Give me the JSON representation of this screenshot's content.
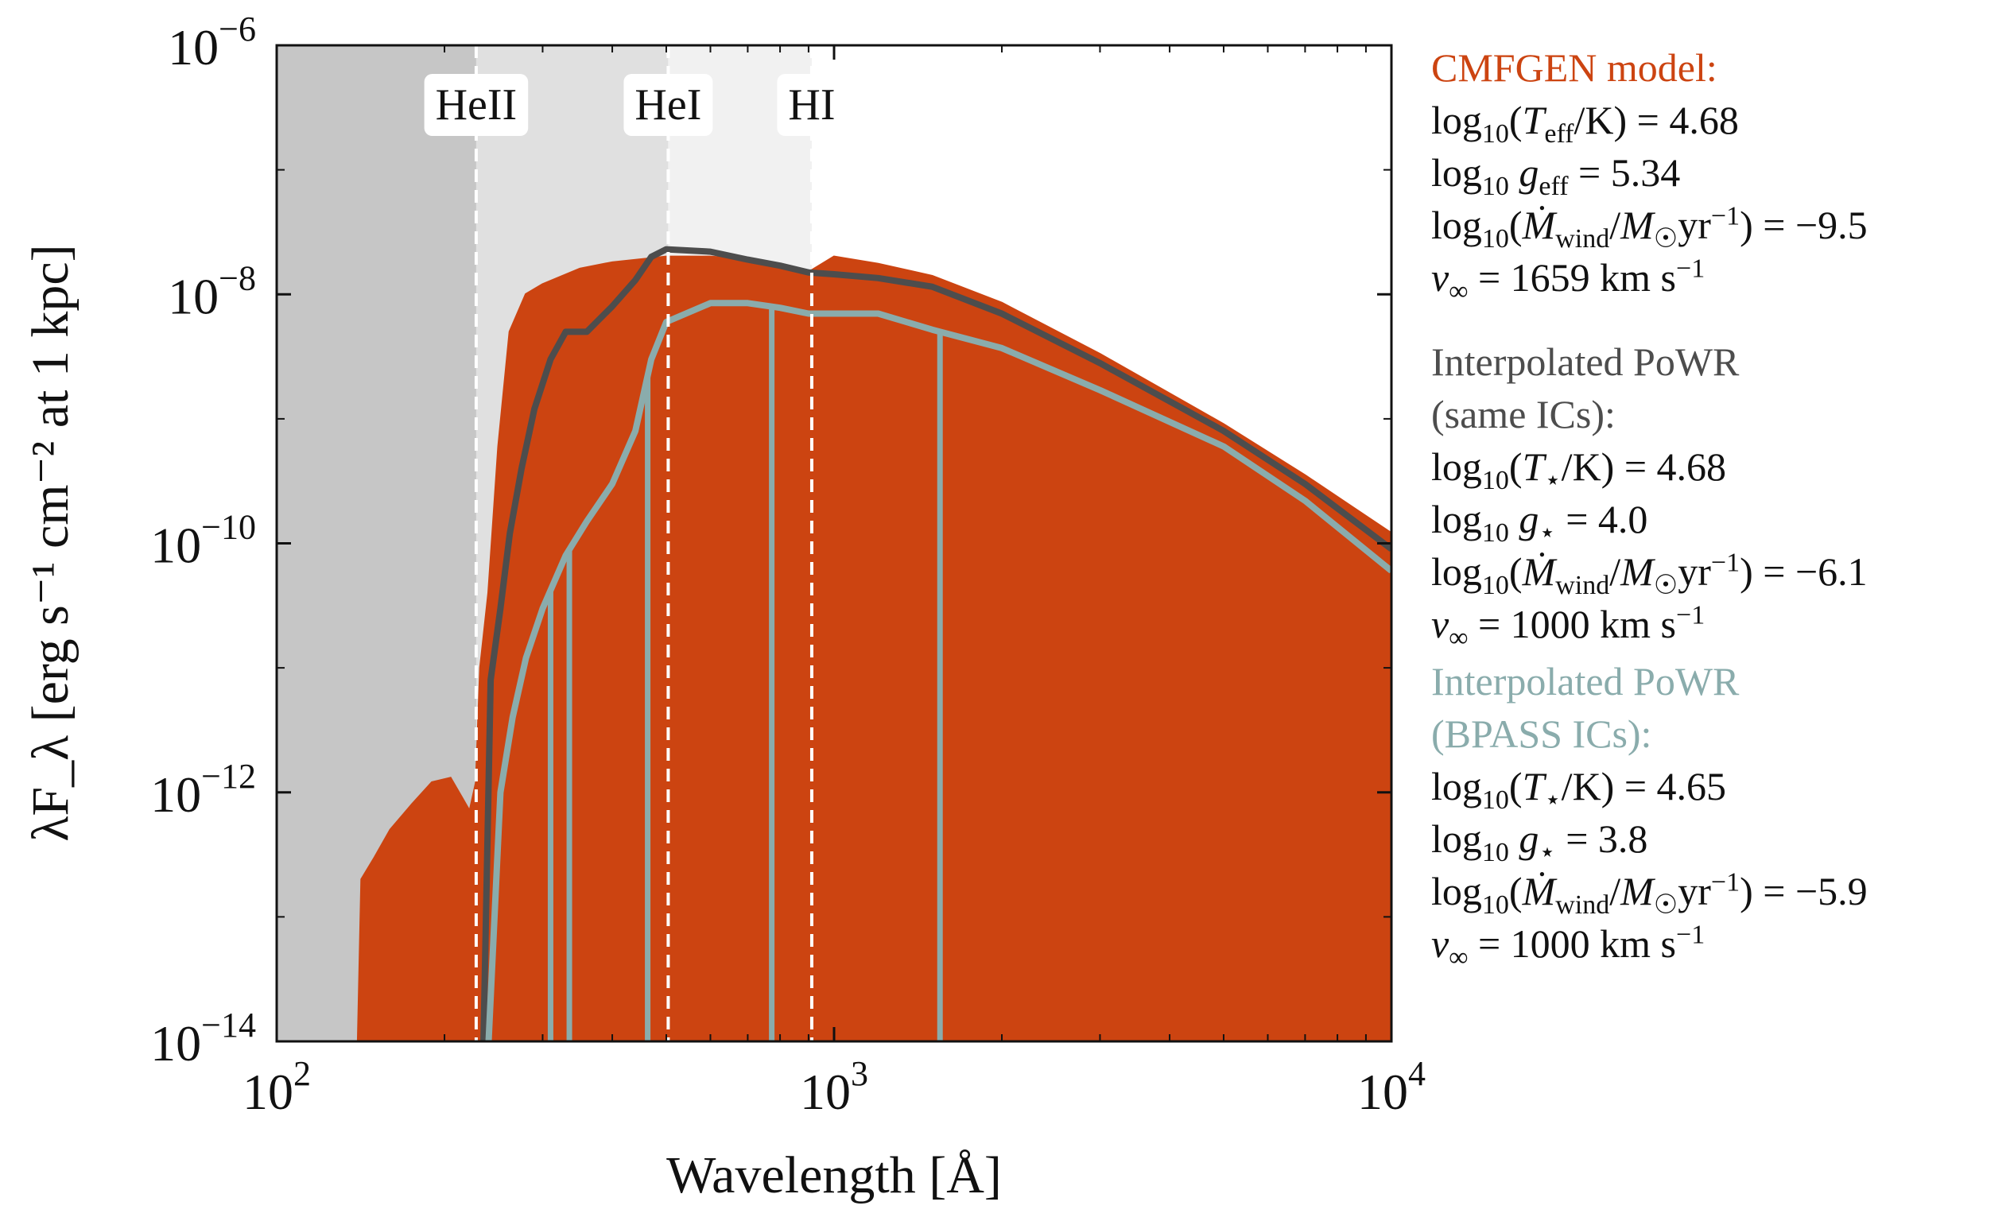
{
  "chart_data": {
    "type": "line",
    "xlabel": "Wavelength [Å]",
    "ylabel": "λF_λ [erg s⁻¹ cm⁻² at 1 kpc]",
    "xscale": "log",
    "yscale": "log",
    "xlim": [
      100,
      10000
    ],
    "ylim": [
      1e-14,
      1e-06
    ],
    "x_ticks": [
      {
        "value": 100,
        "base": "10",
        "exp": "2"
      },
      {
        "value": 1000,
        "base": "10",
        "exp": "3"
      },
      {
        "value": 10000,
        "base": "10",
        "exp": "4"
      }
    ],
    "y_ticks": [
      {
        "value": 1e-06,
        "base": "10",
        "exp": "−6"
      },
      {
        "value": 1e-08,
        "base": "10",
        "exp": "−8"
      },
      {
        "value": 1e-10,
        "base": "10",
        "exp": "−10"
      },
      {
        "value": 1e-12,
        "base": "10",
        "exp": "−12"
      },
      {
        "value": 1e-14,
        "base": "10",
        "exp": "−14"
      }
    ],
    "ionization_edges": [
      {
        "label": "HeII",
        "wavelength": 228,
        "shade_color": "#c6c6c6"
      },
      {
        "label": "HeI",
        "wavelength": 504,
        "shade_color": "#e0e0e0"
      },
      {
        "label": "HI",
        "wavelength": 912,
        "shade_color": "#f1f1f1"
      }
    ],
    "series": [
      {
        "name": "CMFGEN model",
        "color": "#cc4411",
        "style": "filled",
        "points": [
          [
            140,
            1e-14
          ],
          [
            142,
            2e-13
          ],
          [
            150,
            3e-13
          ],
          [
            160,
            5e-13
          ],
          [
            175,
            8e-13
          ],
          [
            190,
            1.2e-12
          ],
          [
            205,
            1.3e-12
          ],
          [
            215,
            9e-13
          ],
          [
            222,
            7e-13
          ],
          [
            228,
            1.2e-12
          ],
          [
            232,
            1e-11
          ],
          [
            240,
            4e-11
          ],
          [
            250,
            6e-10
          ],
          [
            262,
            5e-09
          ],
          [
            280,
            1e-08
          ],
          [
            300,
            1.2e-08
          ],
          [
            350,
            1.6e-08
          ],
          [
            400,
            1.8e-08
          ],
          [
            500,
            2e-08
          ],
          [
            600,
            2e-08
          ],
          [
            700,
            1.9e-08
          ],
          [
            800,
            1.7e-08
          ],
          [
            900,
            1.5e-08
          ],
          [
            1000,
            2e-08
          ],
          [
            1200,
            1.75e-08
          ],
          [
            1500,
            1.4e-08
          ],
          [
            2000,
            8.5e-09
          ],
          [
            3000,
            3.3e-09
          ],
          [
            5000,
            9e-10
          ],
          [
            7000,
            3.5e-10
          ],
          [
            10000,
            1.2e-10
          ]
        ]
      },
      {
        "name": "Interpolated PoWR (same ICs)",
        "color": "#4d4d4d",
        "style": "line",
        "points": [
          [
            235,
            1e-14
          ],
          [
            242,
            8e-12
          ],
          [
            252,
            3e-11
          ],
          [
            262,
            1.2e-10
          ],
          [
            275,
            4e-10
          ],
          [
            290,
            1.2e-09
          ],
          [
            310,
            3e-09
          ],
          [
            330,
            5e-09
          ],
          [
            360,
            5e-09
          ],
          [
            400,
            8e-09
          ],
          [
            440,
            1.3e-08
          ],
          [
            470,
            2e-08
          ],
          [
            500,
            2.3e-08
          ],
          [
            600,
            2.2e-08
          ],
          [
            700,
            1.9e-08
          ],
          [
            800,
            1.7e-08
          ],
          [
            900,
            1.5e-08
          ],
          [
            1000,
            1.45e-08
          ],
          [
            1200,
            1.35e-08
          ],
          [
            1500,
            1.15e-08
          ],
          [
            2000,
            7e-09
          ],
          [
            3000,
            2.8e-09
          ],
          [
            5000,
            8e-10
          ],
          [
            7000,
            3e-10
          ],
          [
            10000,
            9e-11
          ]
        ]
      },
      {
        "name": "Interpolated PoWR (BPASS ICs)",
        "color": "#8aacac",
        "style": "line",
        "points": [
          [
            240,
            1e-14
          ],
          [
            252,
            1e-12
          ],
          [
            265,
            4e-12
          ],
          [
            280,
            1.2e-11
          ],
          [
            300,
            3e-11
          ],
          [
            330,
            8e-11
          ],
          [
            360,
            1.5e-10
          ],
          [
            400,
            3e-10
          ],
          [
            440,
            8e-10
          ],
          [
            470,
            3e-09
          ],
          [
            500,
            6e-09
          ],
          [
            600,
            8.5e-09
          ],
          [
            700,
            8.5e-09
          ],
          [
            800,
            7.8e-09
          ],
          [
            900,
            7e-09
          ],
          [
            1000,
            7e-09
          ],
          [
            1200,
            7e-09
          ],
          [
            1500,
            5.2e-09
          ],
          [
            2000,
            3.7e-09
          ],
          [
            3000,
            1.7e-09
          ],
          [
            5000,
            6e-10
          ],
          [
            7000,
            2.2e-10
          ],
          [
            10000,
            6e-11
          ]
        ]
      }
    ],
    "absorption_lines": [
      {
        "series": "Interpolated PoWR (BPASS ICs)",
        "wavelength": 463,
        "depth_to": 1e-14
      },
      {
        "series": "Interpolated PoWR (BPASS ICs)",
        "wavelength": 773,
        "depth_to": 1e-14
      },
      {
        "series": "Interpolated PoWR (BPASS ICs)",
        "wavelength": 1549,
        "depth_to": 1e-14
      },
      {
        "series": "Interpolated PoWR (BPASS ICs)",
        "wavelength": 335,
        "depth_to": 1e-14
      },
      {
        "series": "Interpolated PoWR (BPASS ICs)",
        "wavelength": 310,
        "depth_to": 1e-14
      }
    ]
  },
  "legend": {
    "cmfgen": {
      "title": "CMFGEN model:",
      "teff": "4.68",
      "geff": "5.34",
      "mdot": "−9.5",
      "vinf": "1659"
    },
    "powr_same": {
      "title1": "Interpolated PoWR",
      "title2": "(same ICs):",
      "tstar": "4.68",
      "gstar": "4.0",
      "mdot": "−6.1",
      "vinf": "1000"
    },
    "powr_bpass": {
      "title1": "Interpolated PoWR",
      "title2": "(BPASS ICs):",
      "tstar": "4.65",
      "gstar": "3.8",
      "mdot": "−5.9",
      "vinf": "1000"
    },
    "units": {
      "km": "km s",
      "km_exp": "−1",
      "yr": "yr",
      "yr_exp": "−1"
    }
  }
}
